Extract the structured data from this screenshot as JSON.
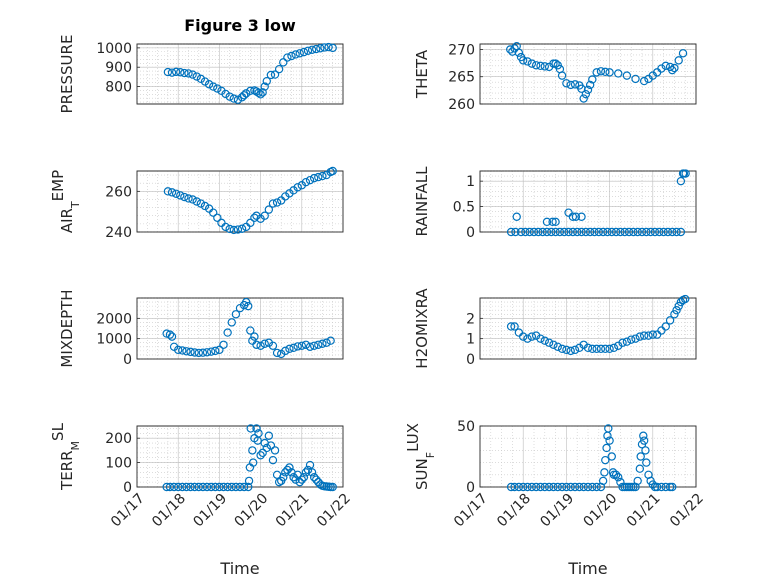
{
  "chart_data": [
    {
      "type": "scatter",
      "title": "Figure 3 low",
      "ylabel": "PRESSURE",
      "ylabel_sub": "",
      "xlabel": "",
      "xlim": [
        17,
        22
      ],
      "ylim": [
        710,
        1020
      ],
      "yticks": [
        800,
        900,
        1000
      ],
      "ytick_labels": [
        "800",
        "900",
        "1000"
      ],
      "xticks": [],
      "xtick_labels": [],
      "x": [
        17.75,
        17.85,
        17.95,
        18.05,
        18.15,
        18.25,
        18.35,
        18.45,
        18.55,
        18.65,
        18.75,
        18.85,
        18.95,
        19.05,
        19.15,
        19.25,
        19.35,
        19.45,
        19.55,
        19.6,
        19.65,
        19.75,
        19.85,
        19.9,
        19.95,
        20.0,
        20.05,
        20.1,
        20.15,
        20.25,
        20.35,
        20.45,
        20.55,
        20.65,
        20.75,
        20.85,
        20.95,
        21.05,
        21.15,
        21.25,
        21.35,
        21.45,
        21.55,
        21.65,
        21.75
      ],
      "y": [
        875,
        872,
        876,
        874,
        870,
        868,
        862,
        852,
        840,
        826,
        812,
        800,
        790,
        778,
        762,
        748,
        738,
        732,
        745,
        755,
        765,
        778,
        780,
        775,
        768,
        760,
        770,
        800,
        828,
        860,
        862,
        890,
        925,
        950,
        958,
        966,
        972,
        978,
        985,
        990,
        994,
        998,
        1002,
        1004,
        1000
      ]
    },
    {
      "type": "scatter",
      "title": "",
      "ylabel": "THETA",
      "ylabel_sub": "",
      "xlabel": "",
      "xlim": [
        17,
        22
      ],
      "ylim": [
        260,
        271
      ],
      "yticks": [
        260,
        265,
        270
      ],
      "ytick_labels": [
        "260",
        "265",
        "270"
      ],
      "xticks": [],
      "xtick_labels": [],
      "x": [
        17.7,
        17.75,
        17.8,
        17.85,
        17.9,
        17.95,
        18.0,
        18.1,
        18.2,
        18.3,
        18.4,
        18.5,
        18.6,
        18.7,
        18.75,
        18.8,
        18.85,
        18.9,
        19.0,
        19.1,
        19.2,
        19.3,
        19.35,
        19.4,
        19.45,
        19.5,
        19.55,
        19.6,
        19.7,
        19.8,
        19.9,
        20.0,
        20.2,
        20.4,
        20.6,
        20.8,
        20.9,
        21.0,
        21.1,
        21.2,
        21.3,
        21.4,
        21.45,
        21.5,
        21.6,
        21.7
      ],
      "y": [
        270,
        269.6,
        270.2,
        270.6,
        269.4,
        268.6,
        268.0,
        267.8,
        267.4,
        267.1,
        267.0,
        266.9,
        266.8,
        267.4,
        267.4,
        267.1,
        266.4,
        265.2,
        263.8,
        263.5,
        263.6,
        263.4,
        262.8,
        261.0,
        261.8,
        262.6,
        263.5,
        264.5,
        265.8,
        266.0,
        265.9,
        265.8,
        265.6,
        265.2,
        264.6,
        264.2,
        264.6,
        265.2,
        265.8,
        266.5,
        267.0,
        266.8,
        266.2,
        266.6,
        268.0,
        269.3
      ]
    },
    {
      "type": "scatter",
      "title": "",
      "ylabel": "AIR",
      "ylabel_sub": "T",
      "ylabel_suffix": "EMP",
      "xlabel": "",
      "xlim": [
        17,
        22
      ],
      "ylim": [
        240,
        270
      ],
      "yticks": [
        240,
        260
      ],
      "ytick_labels": [
        "240",
        "260"
      ],
      "xticks": [],
      "xtick_labels": [],
      "x": [
        17.75,
        17.85,
        17.95,
        18.05,
        18.15,
        18.25,
        18.35,
        18.45,
        18.55,
        18.65,
        18.75,
        18.85,
        18.95,
        19.05,
        19.15,
        19.25,
        19.35,
        19.45,
        19.55,
        19.65,
        19.75,
        19.85,
        19.9,
        20.0,
        20.1,
        20.2,
        20.3,
        20.4,
        20.5,
        20.6,
        20.7,
        20.8,
        20.9,
        21.0,
        21.1,
        21.2,
        21.3,
        21.4,
        21.5,
        21.6,
        21.7,
        21.75
      ],
      "y": [
        260,
        259.5,
        258.8,
        258,
        257.2,
        256.5,
        256,
        255,
        254,
        252.8,
        251.5,
        249.5,
        247,
        244.5,
        242.5,
        241.5,
        241,
        241.2,
        241.6,
        242.5,
        244.5,
        247,
        248,
        246.5,
        248,
        251,
        254,
        254.5,
        255.5,
        257.5,
        259,
        260.5,
        262,
        263,
        264.5,
        265.5,
        266.5,
        267,
        267.5,
        268,
        269.5,
        270
      ]
    },
    {
      "type": "scatter",
      "title": "",
      "ylabel": "RAINFALL",
      "ylabel_sub": "",
      "xlabel": "",
      "xlim": [
        17,
        22
      ],
      "ylim": [
        0,
        1.2
      ],
      "yticks": [
        0,
        0.5,
        1
      ],
      "ytick_labels": [
        "0",
        "0.5",
        "1"
      ],
      "xticks": [],
      "xtick_labels": [],
      "x": [
        17.72,
        17.82,
        17.95,
        18.05,
        18.15,
        18.25,
        18.35,
        18.45,
        18.55,
        18.65,
        18.75,
        18.85,
        18.95,
        19.05,
        19.15,
        19.25,
        19.35,
        19.45,
        19.55,
        19.65,
        19.75,
        19.85,
        19.95,
        20.05,
        20.15,
        20.25,
        20.35,
        20.45,
        20.55,
        20.65,
        20.75,
        20.85,
        20.95,
        21.05,
        21.15,
        21.25,
        21.35,
        21.45,
        21.55,
        21.65,
        17.85,
        18.55,
        18.68,
        18.75,
        19.05,
        19.15,
        19.22,
        19.35,
        21.65,
        21.7,
        21.72,
        21.76
      ],
      "y": [
        0,
        0,
        0,
        0,
        0,
        0,
        0,
        0,
        0,
        0,
        0,
        0,
        0,
        0,
        0,
        0,
        0,
        0,
        0,
        0,
        0,
        0,
        0,
        0,
        0,
        0,
        0,
        0,
        0,
        0,
        0,
        0,
        0,
        0,
        0,
        0,
        0,
        0,
        0,
        0,
        0.3,
        0.2,
        0.2,
        0.2,
        0.38,
        0.3,
        0.3,
        0.3,
        1.0,
        1.15,
        1.15,
        1.15
      ]
    },
    {
      "type": "scatter",
      "title": "",
      "ylabel": "MIXDEPTH",
      "ylabel_sub": "",
      "xlabel": "",
      "xlim": [
        17,
        22
      ],
      "ylim": [
        0,
        3000
      ],
      "yticks": [
        0,
        1000,
        2000
      ],
      "ytick_labels": [
        "0",
        "1000",
        "2000"
      ],
      "xticks": [],
      "xtick_labels": [],
      "x": [
        17.72,
        17.8,
        17.85,
        17.9,
        18.0,
        18.1,
        18.2,
        18.3,
        18.4,
        18.5,
        18.6,
        18.7,
        18.8,
        18.9,
        19.0,
        19.1,
        19.2,
        19.3,
        19.4,
        19.5,
        19.6,
        19.65,
        19.7,
        19.75,
        19.8,
        19.85,
        19.9,
        20.0,
        20.1,
        20.2,
        20.3,
        20.4,
        20.5,
        20.6,
        20.7,
        20.8,
        20.9,
        21.0,
        21.1,
        21.2,
        21.3,
        21.4,
        21.5,
        21.6,
        21.7
      ],
      "y": [
        1250,
        1200,
        1100,
        600,
        450,
        420,
        380,
        350,
        320,
        300,
        310,
        330,
        360,
        400,
        450,
        700,
        1300,
        1800,
        2200,
        2500,
        2650,
        2800,
        2600,
        1400,
        900,
        1100,
        700,
        650,
        750,
        800,
        650,
        300,
        250,
        400,
        500,
        550,
        620,
        650,
        700,
        600,
        650,
        700,
        750,
        800,
        900
      ]
    },
    {
      "type": "scatter",
      "title": "",
      "ylabel": "H2OMIXRA",
      "ylabel_sub": "",
      "xlabel": "",
      "xlim": [
        17,
        22
      ],
      "ylim": [
        0,
        3
      ],
      "yticks": [
        0,
        1,
        2
      ],
      "ytick_labels": [
        "0",
        "1",
        "2"
      ],
      "xticks": [],
      "xtick_labels": [],
      "x": [
        17.72,
        17.8,
        17.9,
        18.0,
        18.1,
        18.2,
        18.3,
        18.4,
        18.5,
        18.6,
        18.7,
        18.8,
        18.9,
        19.0,
        19.1,
        19.2,
        19.3,
        19.4,
        19.5,
        19.6,
        19.7,
        19.8,
        19.9,
        20.0,
        20.1,
        20.2,
        20.3,
        20.4,
        20.5,
        20.6,
        20.7,
        20.8,
        20.9,
        21.0,
        21.1,
        21.2,
        21.3,
        21.4,
        21.5,
        21.55,
        21.6,
        21.65,
        21.7,
        21.75
      ],
      "y": [
        1.6,
        1.6,
        1.3,
        1.1,
        1.0,
        1.1,
        1.15,
        1.0,
        0.9,
        0.8,
        0.7,
        0.6,
        0.5,
        0.45,
        0.4,
        0.45,
        0.55,
        0.7,
        0.55,
        0.5,
        0.5,
        0.5,
        0.5,
        0.5,
        0.55,
        0.65,
        0.8,
        0.85,
        0.95,
        1.0,
        1.1,
        1.15,
        1.15,
        1.2,
        1.2,
        1.4,
        1.6,
        1.9,
        2.2,
        2.4,
        2.6,
        2.8,
        2.9,
        2.95
      ]
    },
    {
      "type": "scatter",
      "title": "",
      "ylabel": "TERR",
      "ylabel_sub": "M",
      "ylabel_suffix": "SL",
      "xlabel": "Time",
      "xlim": [
        17,
        22
      ],
      "ylim": [
        0,
        250
      ],
      "yticks": [
        0,
        100,
        200
      ],
      "ytick_labels": [
        "0",
        "100",
        "200"
      ],
      "xticks": [
        17,
        18,
        19,
        20,
        21,
        22
      ],
      "xtick_labels": [
        "01/17",
        "01/18",
        "01/19",
        "01/20",
        "01/21",
        "01/22"
      ],
      "x": [
        17.72,
        17.8,
        17.9,
        18.0,
        18.1,
        18.2,
        18.3,
        18.4,
        18.5,
        18.6,
        18.7,
        18.8,
        18.9,
        19.0,
        19.1,
        19.2,
        19.3,
        19.4,
        19.5,
        19.6,
        19.7,
        19.72,
        19.74,
        19.76,
        19.8,
        19.82,
        19.85,
        19.9,
        19.93,
        19.95,
        20.0,
        20.05,
        20.1,
        20.15,
        20.2,
        20.25,
        20.3,
        20.35,
        20.4,
        20.45,
        20.5,
        20.55,
        20.6,
        20.65,
        20.7,
        20.75,
        20.8,
        20.85,
        20.9,
        20.95,
        21.0,
        21.05,
        21.1,
        21.15,
        21.2,
        21.25,
        21.3,
        21.35,
        21.4,
        21.45,
        21.5,
        21.55,
        21.6,
        21.65,
        21.7,
        21.75
      ],
      "y": [
        0,
        0,
        0,
        0,
        0,
        0,
        0,
        0,
        0,
        0,
        0,
        0,
        0,
        0,
        0,
        0,
        0,
        0,
        0,
        0,
        0,
        25,
        80,
        240,
        150,
        100,
        200,
        240,
        190,
        220,
        130,
        140,
        180,
        160,
        210,
        170,
        110,
        150,
        50,
        20,
        25,
        40,
        60,
        70,
        80,
        60,
        40,
        30,
        50,
        20,
        30,
        40,
        60,
        70,
        90,
        60,
        40,
        30,
        20,
        10,
        5,
        3,
        2,
        1,
        0,
        0
      ]
    },
    {
      "type": "scatter",
      "title": "",
      "ylabel": "SUN",
      "ylabel_sub": "F",
      "ylabel_suffix": "LUX",
      "xlabel": "Time",
      "xlim": [
        17,
        22
      ],
      "ylim": [
        0,
        50
      ],
      "yticks": [
        0,
        50
      ],
      "ytick_labels": [
        "0",
        "50"
      ],
      "xticks": [
        17,
        18,
        19,
        20,
        21,
        22
      ],
      "xtick_labels": [
        "01/17",
        "01/18",
        "01/19",
        "01/20",
        "01/21",
        "01/22"
      ],
      "x": [
        17.72,
        17.8,
        17.9,
        18.0,
        18.1,
        18.2,
        18.3,
        18.4,
        18.5,
        18.6,
        18.7,
        18.8,
        18.9,
        19.0,
        19.1,
        19.2,
        19.3,
        19.4,
        19.5,
        19.6,
        19.7,
        19.8,
        19.85,
        19.88,
        19.9,
        19.93,
        19.95,
        19.97,
        20.0,
        20.05,
        20.08,
        20.1,
        20.15,
        20.2,
        20.25,
        20.3,
        20.35,
        20.4,
        20.45,
        20.5,
        20.55,
        20.6,
        20.65,
        20.7,
        20.72,
        20.75,
        20.78,
        20.8,
        20.83,
        20.85,
        20.9,
        20.95,
        21.0,
        21.05,
        21.1,
        21.2,
        21.3,
        21.4,
        21.45
      ],
      "y": [
        0,
        0,
        0,
        0,
        0,
        0,
        0,
        0,
        0,
        0,
        0,
        0,
        0,
        0,
        0,
        0,
        0,
        0,
        0,
        0,
        0,
        0,
        5,
        12,
        22,
        32,
        42,
        48,
        38,
        25,
        12,
        10,
        10,
        8,
        4,
        0,
        0,
        0,
        0,
        0,
        0,
        0,
        5,
        15,
        25,
        35,
        42,
        38,
        30,
        20,
        10,
        5,
        2,
        0,
        0,
        0,
        0,
        0,
        0
      ]
    }
  ]
}
